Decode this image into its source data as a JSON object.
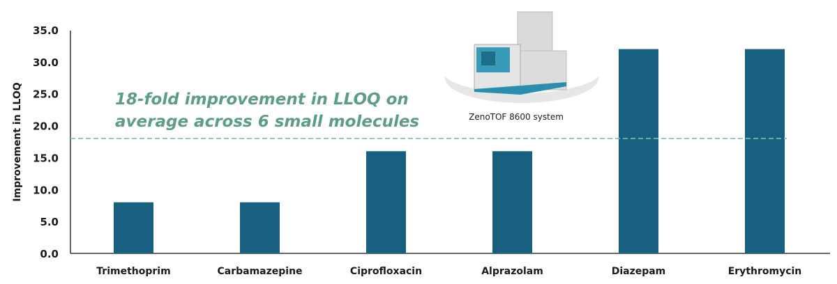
{
  "chart_data": {
    "type": "bar",
    "title": "",
    "xlabel": "",
    "ylabel": "Improvement in LLOQ",
    "ylim": [
      0,
      35
    ],
    "yticks": [
      "0.0",
      "5.0",
      "10.0",
      "15.0",
      "20.0",
      "25.0",
      "30.0",
      "35.0"
    ],
    "categories": [
      "Trimethoprim",
      "Carbamazepine",
      "Ciprofloxacin",
      "Alprazolam",
      "Diazepam",
      "Erythromycin"
    ],
    "values": [
      8,
      8,
      16,
      16,
      32,
      32
    ],
    "reference_line": {
      "value": 18,
      "style": "dashed"
    },
    "annotation": [
      "18-fold improvement in LLOQ on",
      "average across 6 small molecules"
    ],
    "image_caption": "ZenoTOF 8600 system",
    "grid": false,
    "colors": {
      "bar": "#17607f",
      "reference_line": "#7fbcad",
      "annotation": "#5f9b8b"
    }
  }
}
